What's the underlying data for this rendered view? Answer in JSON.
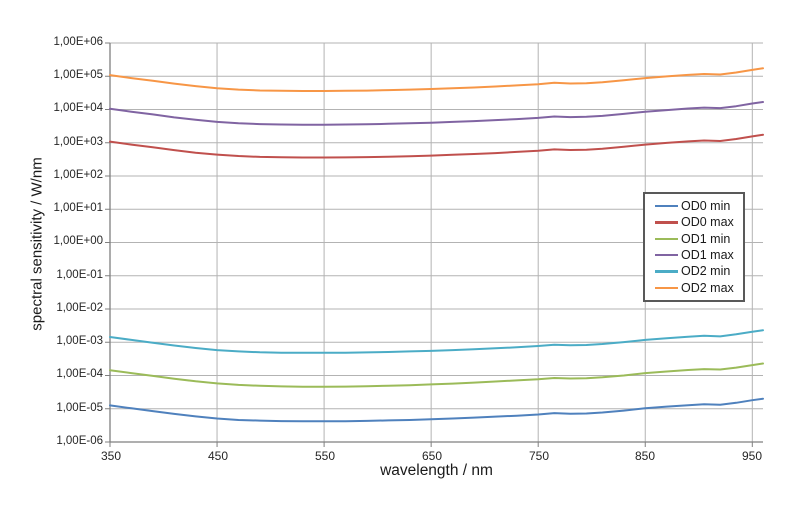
{
  "figure": {
    "background": "#ffffff",
    "text_color": "#262626"
  },
  "chart_data": {
    "type": "line",
    "title": "",
    "xlabel": "wavelength / nm",
    "ylabel": "spectral sensitivity / W/nm",
    "grid": {
      "show": true,
      "color": "#b3b3b3",
      "axis_color": "#7f7f7f"
    },
    "legend": {
      "position": "right-middle",
      "border_color": "#595959",
      "background": "#ffffff"
    },
    "x_axis": {
      "min": 350,
      "max": 960,
      "tick_values": [
        350,
        450,
        550,
        650,
        750,
        850,
        950
      ],
      "tick_labels": [
        "350",
        "450",
        "550",
        "650",
        "750",
        "850",
        "950"
      ]
    },
    "y_axis": {
      "scale": "log",
      "max_exp": 6,
      "min_exp": -6,
      "tick_exponents": [
        6,
        5,
        4,
        3,
        2,
        1,
        0,
        -1,
        -2,
        -3,
        -4,
        -5,
        -6
      ],
      "tick_labels": [
        "1,00E+06",
        "1,00E+05",
        "1,00E+04",
        "1,00E+03",
        "1,00E+02",
        "1,00E+01",
        "1,00E+00",
        "1,00E-01",
        "1,00E-02",
        "1,00E-03",
        "1,00E-04",
        "1,00E-05",
        "1,00E-06"
      ]
    },
    "x": [
      350,
      370,
      390,
      410,
      430,
      450,
      470,
      490,
      510,
      530,
      550,
      570,
      590,
      610,
      630,
      650,
      670,
      690,
      710,
      730,
      750,
      765,
      780,
      795,
      810,
      830,
      850,
      870,
      890,
      905,
      920,
      935,
      950,
      960
    ],
    "series": [
      {
        "name": "OD0 min",
        "color": "#4F81BD",
        "values": [
          1.26e-05,
          1.03e-05,
          8.5e-06,
          7e-06,
          5.9e-06,
          5.1e-06,
          4.6e-06,
          4.4e-06,
          4.25e-06,
          4.2e-06,
          4.2e-06,
          4.2e-06,
          4.3e-06,
          4.45e-06,
          4.6e-06,
          4.8e-06,
          5.1e-06,
          5.4e-06,
          5.8e-06,
          6.2e-06,
          6.7e-06,
          7.4e-06,
          7.1e-06,
          7.2e-06,
          7.7e-06,
          8.8e-06,
          1.03e-05,
          1.16e-05,
          1.28e-05,
          1.37e-05,
          1.32e-05,
          1.51e-05,
          1.81e-05,
          2e-05
        ]
      },
      {
        "name": "OD0 max",
        "color": "#C0504D",
        "values": [
          1080.0,
          880.0,
          730.0,
          600.0,
          500.0,
          440.0,
          400.0,
          375.0,
          365.0,
          360.0,
          360.0,
          362.0,
          370.0,
          380.0,
          395.0,
          410.0,
          435.0,
          460.0,
          490.0,
          530.0,
          575.0,
          630.0,
          605.0,
          620.0,
          660.0,
          760.0,
          880.0,
          990.0,
          1100.0,
          1170.0,
          1130.0,
          1300.0,
          1550.0,
          1730.0
        ]
      },
      {
        "name": "OD1 min",
        "color": "#9BBB59",
        "values": [
          0.000144,
          0.000118,
          9.7e-05,
          8e-05,
          6.7e-05,
          5.8e-05,
          5.2e-05,
          4.9e-05,
          4.7e-05,
          4.6e-05,
          4.6e-05,
          4.65e-05,
          4.75e-05,
          4.9e-05,
          5.1e-05,
          5.4e-05,
          5.7e-05,
          6.1e-05,
          6.6e-05,
          7.1e-05,
          7.7e-05,
          8.4e-05,
          8.1e-05,
          8.3e-05,
          8.8e-05,
          0.0001,
          0.000118,
          0.000132,
          0.000146,
          0.000156,
          0.000151,
          0.000173,
          0.000206,
          0.00023
        ]
      },
      {
        "name": "OD1 max",
        "color": "#8064A2",
        "values": [
          10500.0,
          8600.0,
          7100.0,
          5800.0,
          4900.0,
          4240.0,
          3850.0,
          3640.0,
          3540.0,
          3500.0,
          3500.0,
          3530.0,
          3600.0,
          3720.0,
          3850.0,
          4000.0,
          4240.0,
          4480.0,
          4800.0,
          5150.0,
          5600.0,
          6160.0,
          5920.0,
          6020.0,
          6440.0,
          7350.0,
          8600.0,
          9620.0,
          10700.0,
          11400.0,
          11000.0,
          12600.0,
          15100.0,
          16800.0
        ]
      },
      {
        "name": "OD2 min",
        "color": "#4BACC6",
        "values": [
          0.00144,
          0.00118,
          0.00097,
          0.0008,
          0.00067,
          0.00058,
          0.00053,
          0.0005,
          0.000485,
          0.00048,
          0.00048,
          0.000485,
          0.000495,
          0.00051,
          0.00053,
          0.00055,
          0.00058,
          0.000615,
          0.00066,
          0.000705,
          0.00077,
          0.000845,
          0.00081,
          0.000825,
          0.000885,
          0.00101,
          0.00118,
          0.00132,
          0.00147,
          0.00156,
          0.0015,
          0.00173,
          0.00206,
          0.0023
        ]
      },
      {
        "name": "OD2 max",
        "color": "#F79646",
        "values": [
          108000.0,
          88000.0,
          73000.0,
          60000.0,
          50400.0,
          43600.0,
          39600.0,
          37400.0,
          36400.0,
          36000.0,
          36000.0,
          36400.0,
          37000.0,
          38200.0,
          39600.0,
          41400.0,
          43600.0,
          46000.0,
          49300.0,
          53000.0,
          57600.0,
          63400.0,
          60500.0,
          62000.0,
          66200.0,
          75600.0,
          88200.0,
          99000.0,
          110000.0,
          117000.0,
          113000.0,
          130000.0,
          155000.0,
          173000.0
        ]
      }
    ]
  }
}
